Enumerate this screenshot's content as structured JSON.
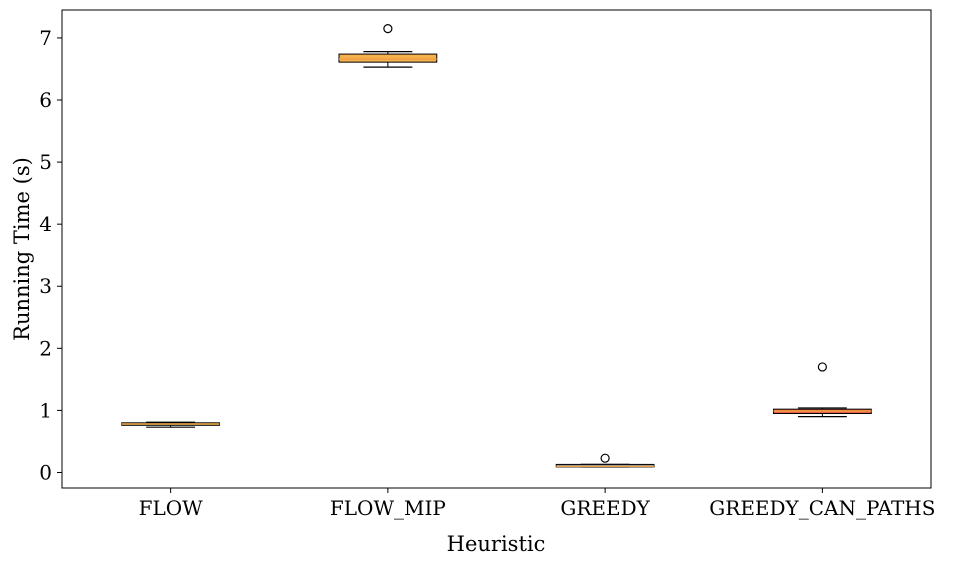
{
  "chart_data": {
    "type": "box",
    "xlabel": "Heuristic",
    "ylabel": "Running Time (s)",
    "ylim": [
      -0.25,
      7.45
    ],
    "yticks": [
      0,
      1,
      2,
      3,
      4,
      5,
      6,
      7
    ],
    "grid": false,
    "categories": [
      "FLOW",
      "FLOW_MIP",
      "GREEDY",
      "GREEDY_CAN_PATHS"
    ],
    "boxes": [
      {
        "name": "FLOW",
        "whislo": 0.73,
        "q1": 0.76,
        "med": 0.78,
        "q3": 0.8,
        "whishi": 0.81,
        "fliers": [],
        "color": "#7ab56a"
      },
      {
        "name": "FLOW_MIP",
        "whislo": 6.53,
        "q1": 6.61,
        "med": 6.66,
        "q3": 6.74,
        "whishi": 6.78,
        "fliers": [
          7.15
        ],
        "color": "#f5b04f"
      },
      {
        "name": "GREEDY",
        "whislo": 0.09,
        "q1": 0.09,
        "med": 0.1,
        "q3": 0.13,
        "whishi": 0.13,
        "fliers": [
          0.23
        ],
        "color": "#5b8bc4"
      },
      {
        "name": "GREEDY_CAN_PATHS",
        "whislo": 0.9,
        "q1": 0.95,
        "med": 0.99,
        "q3": 1.02,
        "whishi": 1.04,
        "fliers": [
          1.7
        ],
        "color": "#e8604a"
      }
    ],
    "median_color": "#f0a040"
  }
}
